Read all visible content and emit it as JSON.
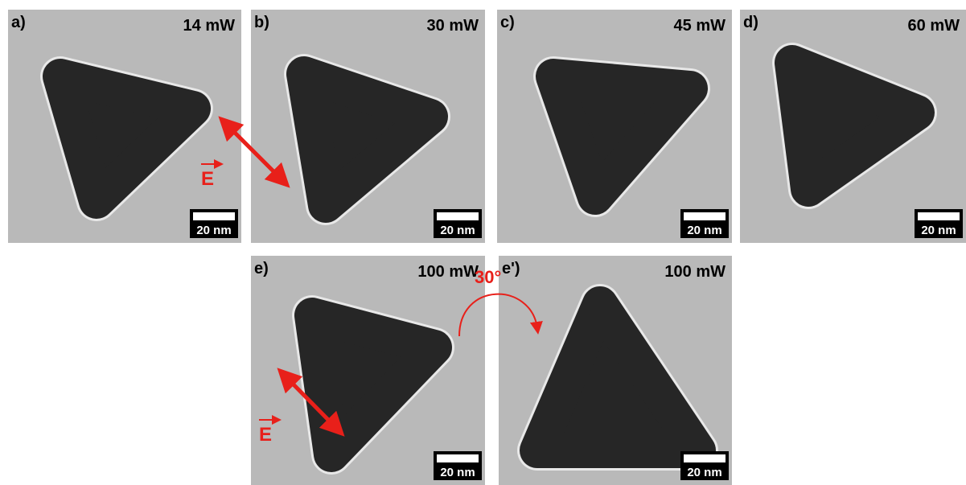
{
  "panels": [
    {
      "label": "a)",
      "power": "14 mW",
      "scale_bar": "20 nm"
    },
    {
      "label": "b)",
      "power": "30 mW",
      "scale_bar": "20 nm"
    },
    {
      "label": "c)",
      "power": "45 mW",
      "scale_bar": "20 nm"
    },
    {
      "label": "d)",
      "power": "60 mW",
      "scale_bar": "20 nm"
    },
    {
      "label": "e)",
      "power": "100 mW",
      "scale_bar": "20 nm"
    },
    {
      "label": "e')",
      "power": "100 mW",
      "scale_bar": "20 nm"
    }
  ],
  "annotations": {
    "field_top": "E",
    "field_bottom": "E",
    "rotation": "30°"
  }
}
